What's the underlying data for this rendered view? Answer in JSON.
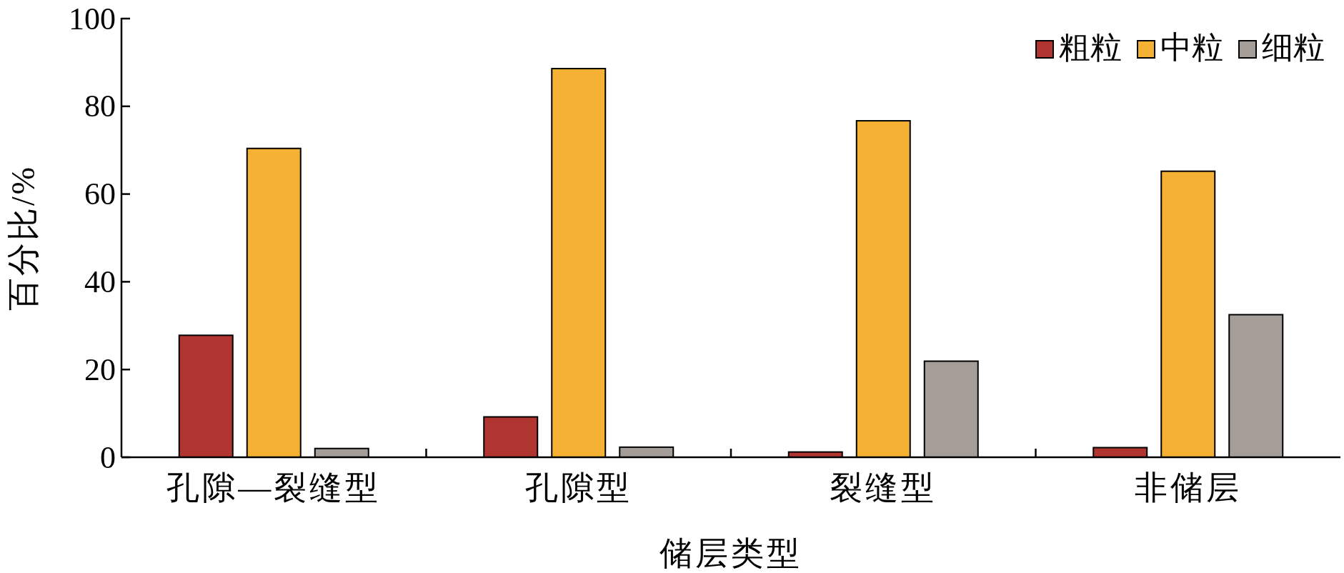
{
  "chart_data": {
    "type": "bar",
    "xlabel": "储层类型",
    "ylabel": "百分比/%",
    "categories": [
      "孔隙—裂缝型",
      "孔隙型",
      "裂缝型",
      "非储层"
    ],
    "series": [
      {
        "name": "粗粒",
        "color": "#b03530",
        "values": [
          27.8,
          9.2,
          1.2,
          2.2
        ]
      },
      {
        "name": "中粒",
        "color": "#f5b133",
        "values": [
          70.4,
          88.6,
          76.7,
          65.2
        ]
      },
      {
        "name": "细粒",
        "color": "#a59d98",
        "values": [
          2.0,
          2.3,
          21.9,
          32.5
        ]
      }
    ],
    "ylim": [
      0,
      100
    ],
    "yticks": [
      0,
      20,
      40,
      60,
      80,
      100
    ],
    "grid": false,
    "legend": "top right"
  }
}
